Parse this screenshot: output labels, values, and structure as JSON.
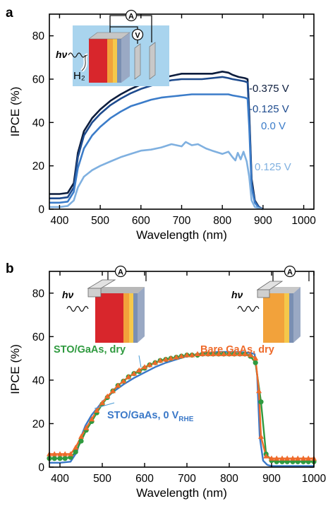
{
  "chart_data": [
    {
      "panel_label": "a",
      "type": "line",
      "xlabel": "Wavelength (nm)",
      "ylabel": "IPCE (%)",
      "xlim": [
        375,
        1025
      ],
      "ylim": [
        0,
        90
      ],
      "xticks": [
        "400",
        "500",
        "600",
        "700",
        "800",
        "900",
        "1000"
      ],
      "yticks": [
        "0",
        "20",
        "40",
        "60",
        "80"
      ],
      "grid": false,
      "inset": {
        "light": "hν",
        "gas": "H₂",
        "meter_a": "A",
        "meter_v": "V"
      },
      "series": [
        {
          "name": "-0.375 V",
          "color": "#0d1d3d",
          "x": [
            375,
            400,
            420,
            435,
            445,
            460,
            480,
            500,
            525,
            550,
            575,
            600,
            625,
            650,
            675,
            700,
            725,
            750,
            775,
            800,
            815,
            825,
            840,
            855,
            862,
            866,
            872,
            880,
            890,
            900
          ],
          "y": [
            7,
            7,
            7.5,
            12,
            26,
            36,
            42,
            46,
            50,
            53,
            55.5,
            57.5,
            59,
            60.5,
            61.5,
            62.5,
            62.5,
            62.5,
            62.5,
            63.5,
            63,
            62,
            61,
            60.5,
            60,
            45,
            14,
            4,
            1,
            0
          ]
        },
        {
          "name": "-0.125 V",
          "color": "#1e4b8e",
          "x": [
            375,
            400,
            420,
            435,
            445,
            460,
            480,
            500,
            525,
            550,
            575,
            600,
            625,
            650,
            675,
            700,
            725,
            750,
            775,
            800,
            815,
            825,
            840,
            855,
            862,
            866,
            872,
            880,
            890,
            900
          ],
          "y": [
            5,
            5,
            5.5,
            10,
            24,
            34,
            40,
            44,
            48,
            51,
            53.5,
            55.5,
            57,
            58.5,
            59.5,
            60,
            60,
            60,
            60.5,
            61,
            60.5,
            60,
            59.5,
            59,
            58.5,
            43,
            12,
            3.5,
            1,
            0
          ]
        },
        {
          "name": "0.0 V",
          "color": "#3b7cc9",
          "x": [
            375,
            400,
            420,
            435,
            445,
            460,
            480,
            500,
            525,
            550,
            575,
            600,
            625,
            650,
            675,
            700,
            725,
            750,
            775,
            800,
            815,
            825,
            840,
            855,
            862,
            866,
            872,
            880,
            890,
            900
          ],
          "y": [
            3,
            3,
            3.5,
            8,
            19,
            28,
            34,
            38,
            42,
            45,
            47.5,
            49,
            50.5,
            51.5,
            52,
            52.5,
            53,
            53,
            53,
            53,
            53,
            52.5,
            52,
            51.5,
            51,
            38,
            10,
            3,
            0.5,
            0
          ]
        },
        {
          "name": "0.125 V",
          "color": "#7fb0e0",
          "x": [
            375,
            400,
            420,
            435,
            445,
            460,
            480,
            500,
            525,
            550,
            575,
            600,
            625,
            650,
            675,
            700,
            710,
            725,
            740,
            760,
            775,
            800,
            815,
            825,
            832,
            838,
            845,
            852,
            860,
            866,
            872,
            880,
            890,
            900
          ],
          "y": [
            1,
            1,
            1.5,
            4,
            10,
            15,
            18,
            20,
            22,
            24,
            25.5,
            27,
            27.5,
            28.5,
            30,
            29,
            31,
            29.5,
            30,
            28,
            27,
            25.5,
            26.5,
            24,
            22.5,
            26,
            23,
            26.5,
            22,
            15,
            4,
            1,
            0.5,
            0
          ]
        }
      ],
      "legend_placement": "right"
    },
    {
      "panel_label": "b",
      "type": "line",
      "xlabel": "Wavelength (nm)",
      "ylabel": "IPCE (%)",
      "xlim": [
        375,
        1000
      ],
      "ylim": [
        0,
        90
      ],
      "xticks": [
        "400",
        "500",
        "600",
        "700",
        "800",
        "900",
        "1000"
      ],
      "yticks": [
        "0",
        "20",
        "40",
        "60",
        "80"
      ],
      "grid": false,
      "insets": [
        {
          "light": "hν",
          "meter": "A",
          "layers": "STO/GaAs"
        },
        {
          "light": "hν",
          "meter": "A",
          "layers": "Bare GaAs"
        }
      ],
      "series": [
        {
          "name": "STO/GaAs, 0 V",
          "subscript": "RHE",
          "color": "#3a78c8",
          "marker": "none",
          "x": [
            375,
            400,
            425,
            440,
            450,
            460,
            475,
            500,
            525,
            550,
            575,
            600,
            625,
            650,
            675,
            700,
            725,
            750,
            775,
            800,
            825,
            850,
            860,
            866,
            872,
            880,
            890,
            900,
            925,
            950,
            975,
            1000
          ],
          "y": [
            2,
            2,
            2.5,
            7,
            14,
            19,
            24,
            30,
            34.5,
            38,
            41,
            43.5,
            46,
            48,
            49.5,
            51,
            52,
            52.5,
            53,
            53,
            53,
            52.5,
            52,
            42,
            14,
            3,
            1,
            0.5,
            0.5,
            0.5,
            0.5,
            0.5
          ]
        },
        {
          "name": "STO/GaAs, dry",
          "color": "#2f9a3f",
          "marker": "circle",
          "x": [
            375,
            387,
            400,
            412,
            425,
            437,
            450,
            462,
            475,
            487,
            500,
            512,
            525,
            537,
            550,
            562,
            575,
            587,
            600,
            612,
            625,
            637,
            650,
            662,
            675,
            687,
            700,
            712,
            725,
            737,
            750,
            762,
            775,
            787,
            800,
            812,
            825,
            837,
            850,
            862,
            875,
            887,
            900,
            912,
            925,
            937,
            950,
            962,
            975,
            987,
            1000
          ],
          "y": [
            4,
            4,
            4,
            4,
            4.5,
            7,
            12,
            17,
            21,
            25,
            29,
            32,
            35,
            37.5,
            39.5,
            41.5,
            43,
            44,
            45.5,
            47,
            48,
            49,
            49.5,
            50,
            50.5,
            51,
            51.5,
            51.5,
            51.5,
            52,
            52,
            52,
            52,
            52,
            52,
            52,
            52,
            52,
            51,
            48,
            30,
            6,
            3,
            2.5,
            2.5,
            2.5,
            2.5,
            2.5,
            2.5,
            2.5,
            2.5
          ]
        },
        {
          "name": "Bare GaAs, dry",
          "color": "#ee6a2a",
          "marker": "triangle",
          "x": [
            375,
            387,
            400,
            412,
            425,
            437,
            450,
            462,
            475,
            487,
            500,
            512,
            525,
            537,
            550,
            562,
            575,
            587,
            600,
            612,
            625,
            637,
            650,
            662,
            675,
            687,
            700,
            712,
            725,
            737,
            750,
            762,
            775,
            787,
            800,
            812,
            825,
            837,
            850,
            862,
            870,
            875,
            887,
            900,
            912,
            925,
            937,
            950,
            962,
            975,
            987,
            1000
          ],
          "y": [
            6,
            6,
            6,
            6,
            6,
            9,
            14,
            18,
            22,
            26,
            29.5,
            32.5,
            35,
            37.5,
            39.5,
            41.5,
            43,
            44.5,
            46,
            47,
            48,
            49,
            49.5,
            50,
            50.5,
            51,
            51.5,
            51.5,
            52,
            52,
            52,
            52,
            52,
            52,
            52,
            52,
            52,
            52,
            51.5,
            50,
            35,
            14,
            5,
            4,
            4,
            4,
            4,
            4,
            4,
            4,
            4,
            4
          ]
        }
      ]
    }
  ]
}
